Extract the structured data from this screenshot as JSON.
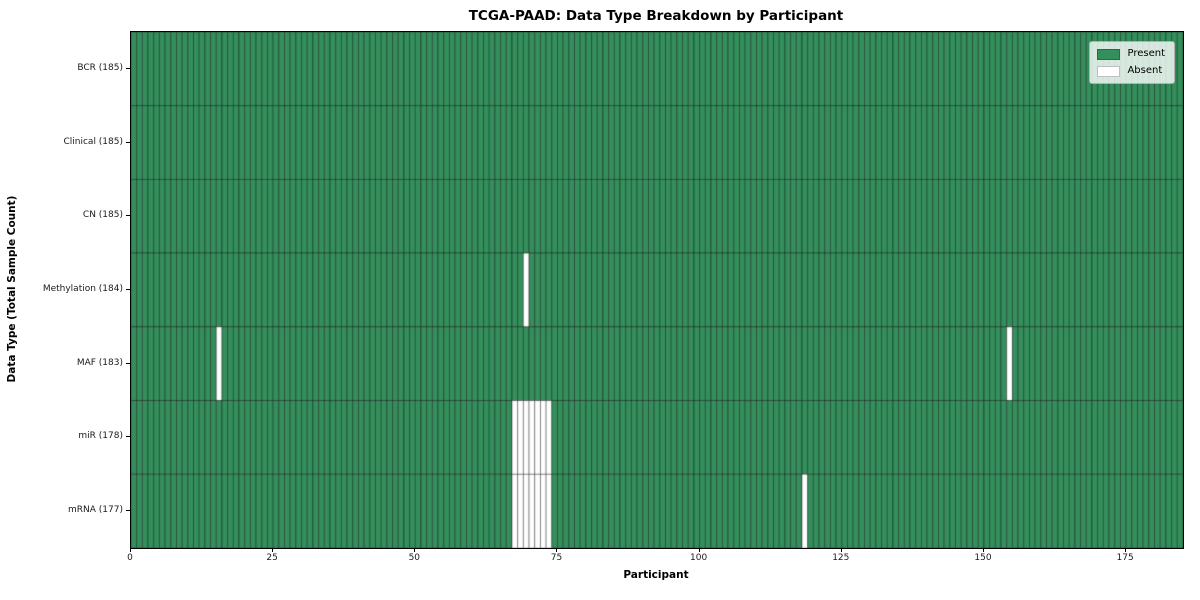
{
  "chart_data": {
    "type": "heatmap",
    "title": "TCGA-PAAD: Data Type Breakdown by Participant",
    "xlabel": "Participant",
    "ylabel": "Data Type (Total Sample Count)",
    "xlim": [
      0,
      185
    ],
    "x_ticks": [
      0,
      25,
      50,
      75,
      100,
      125,
      150,
      175
    ],
    "n_participants": 185,
    "grid": "cell-borders",
    "legend_position": "upper right",
    "rows": [
      {
        "name": "BCR",
        "label": "BCR (185)",
        "total": 185,
        "absent_participants": []
      },
      {
        "name": "Clinical",
        "label": "Clinical (185)",
        "total": 185,
        "absent_participants": []
      },
      {
        "name": "CN",
        "label": "CN (185)",
        "total": 185,
        "absent_participants": []
      },
      {
        "name": "Methylation",
        "label": "Methylation (184)",
        "total": 184,
        "absent_participants": [
          69
        ]
      },
      {
        "name": "MAF",
        "label": "MAF (183)",
        "total": 183,
        "absent_participants": [
          15,
          154
        ]
      },
      {
        "name": "miR",
        "label": "miR (178)",
        "total": 178,
        "absent_participants": [
          67,
          68,
          69,
          70,
          71,
          72,
          73
        ]
      },
      {
        "name": "mRNA",
        "label": "mRNA (177)",
        "total": 177,
        "absent_participants": [
          67,
          68,
          69,
          70,
          71,
          72,
          73,
          118
        ]
      }
    ],
    "legend": [
      {
        "label": "Present",
        "color": "#348F5C"
      },
      {
        "label": "Absent",
        "color": "#FFFFFF"
      }
    ],
    "colors": {
      "present": "#348F5C",
      "absent": "#FFFFFF",
      "cell_border": "rgba(0,0,0,0.42)",
      "spine": "#000000"
    }
  }
}
